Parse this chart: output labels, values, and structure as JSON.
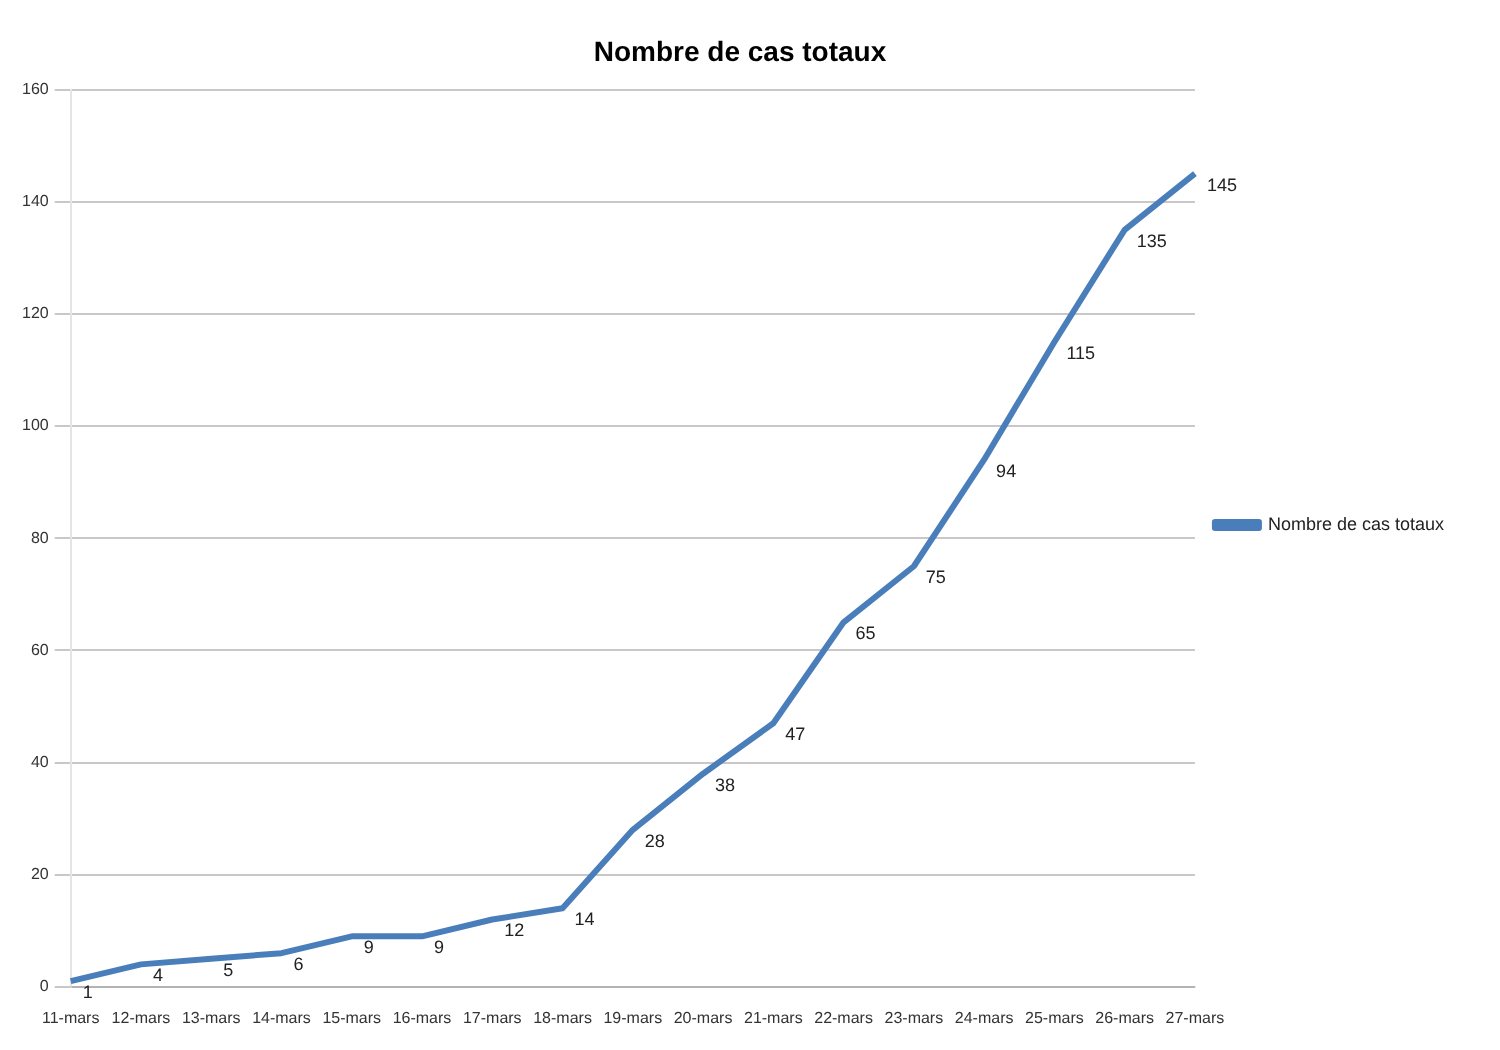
{
  "chart_data": {
    "type": "line",
    "title": "Nombre de cas totaux",
    "categories": [
      "11-mars",
      "12-mars",
      "13-mars",
      "14-mars",
      "15-mars",
      "16-mars",
      "17-mars",
      "18-mars",
      "19-mars",
      "20-mars",
      "21-mars",
      "22-mars",
      "23-mars",
      "24-mars",
      "25-mars",
      "26-mars",
      "27-mars"
    ],
    "series": [
      {
        "name": "Nombre de cas totaux",
        "color": "#4a7ebb",
        "values": [
          1,
          4,
          5,
          6,
          9,
          9,
          12,
          14,
          28,
          38,
          47,
          65,
          75,
          94,
          115,
          135,
          145
        ]
      }
    ],
    "ylim": [
      0,
      160
    ],
    "yticks": [
      0,
      20,
      40,
      60,
      80,
      100,
      120,
      140,
      160
    ],
    "grid": "y",
    "legend": "right",
    "marker": "none",
    "line_style": "solid",
    "data_labels": true
  }
}
